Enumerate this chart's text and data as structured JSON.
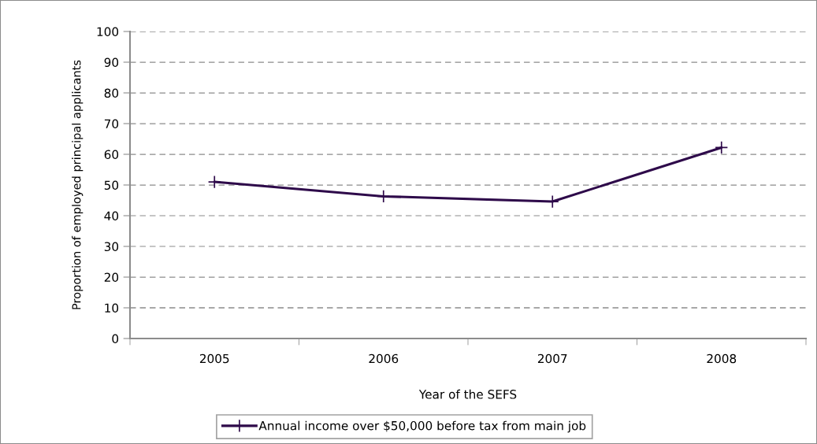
{
  "chart_data": {
    "type": "line",
    "xlabel": "Year of the SEFS",
    "ylabel": "Proportion of employed principal applicants",
    "categories": [
      "2005",
      "2006",
      "2007",
      "2008"
    ],
    "series": [
      {
        "name": "Annual income over $50,000 before tax from main job",
        "color": "#2e0a4a",
        "values": [
          51,
          46.3,
          44.6,
          62.2
        ]
      }
    ],
    "ylim": [
      0,
      100
    ],
    "yticks": [
      0,
      10,
      20,
      30,
      40,
      50,
      60,
      70,
      80,
      90,
      100
    ],
    "grid": "y",
    "legend": "bottom",
    "marker": "cross",
    "line_style": "solid"
  }
}
